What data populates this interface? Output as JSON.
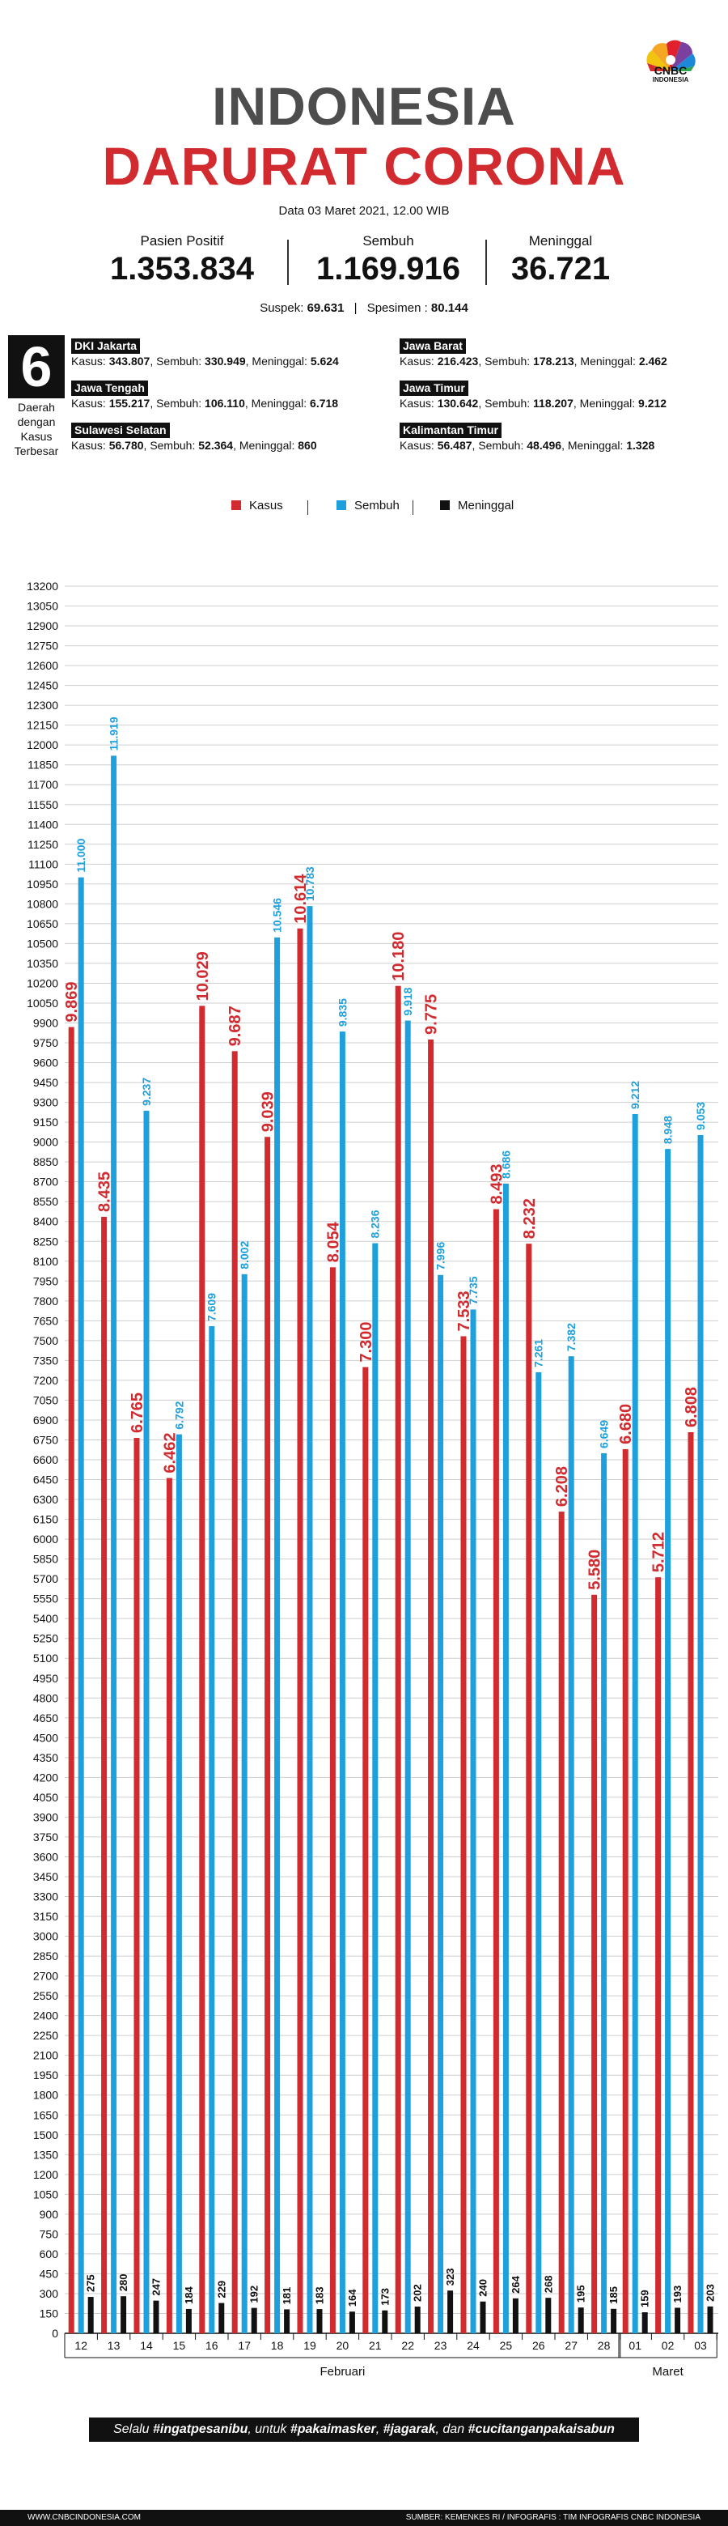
{
  "header": {
    "logo_text": "CNBC",
    "logo_sub": "INDONESIA",
    "title_line1": "INDONESIA",
    "title_line2": "DARURAT CORONA",
    "date": "Data 03 Maret 2021, 12.00 WIB"
  },
  "stats": {
    "positif_label": "Pasien Positif",
    "positif_value": "1.353.834",
    "sembuh_label": "Sembuh",
    "sembuh_value": "1.169.916",
    "meninggal_label": "Meninggal",
    "meninggal_value": "36.721"
  },
  "extra": {
    "suspek_label": "Suspek:",
    "suspek_value": "69.631",
    "spesimen_label": "Spesimen :",
    "spesimen_value": "80.144"
  },
  "regions_block": {
    "count": "6",
    "label_lines": [
      "Daerah",
      "dengan",
      "Kasus",
      "Terbesar"
    ]
  },
  "regions": [
    {
      "name": "DKI Jakarta",
      "kasus": "343.807",
      "sembuh": "330.949",
      "meninggal": "5.624"
    },
    {
      "name": "Jawa Barat",
      "kasus": "216.423",
      "sembuh": "178.213",
      "meninggal": "2.462"
    },
    {
      "name": "Jawa Tengah",
      "kasus": "155.217",
      "sembuh": "106.110",
      "meninggal": "6.718"
    },
    {
      "name": "Jawa Timur",
      "kasus": "130.642",
      "sembuh": "118.207",
      "meninggal": "9.212"
    },
    {
      "name": "Sulawesi Selatan",
      "kasus": "56.780",
      "sembuh": "52.364",
      "meninggal": "860"
    },
    {
      "name": "Kalimantan Timur",
      "kasus": "56.487",
      "sembuh": "48.496",
      "meninggal": "1.328"
    }
  ],
  "region_field_labels": {
    "kasus": "Kasus:",
    "sembuh": "Sembuh:",
    "meninggal": "Meninggal:"
  },
  "colors": {
    "kasus": "#d12a2f",
    "sembuh": "#1ea0dc",
    "meninggal": "#111111",
    "title_gray": "#4d4d4d"
  },
  "chart_data": {
    "type": "bar",
    "legend": [
      "Kasus",
      "Sembuh",
      "Meninggal"
    ],
    "legend_position": "top",
    "categories": [
      "12",
      "13",
      "14",
      "15",
      "16",
      "17",
      "18",
      "19",
      "20",
      "21",
      "22",
      "23",
      "24",
      "25",
      "26",
      "27",
      "28",
      "01",
      "02",
      "03"
    ],
    "groups": [
      {
        "label": "Februari",
        "categories": [
          "12",
          "13",
          "14",
          "15",
          "16",
          "17",
          "18",
          "19",
          "20",
          "21",
          "22",
          "23",
          "24",
          "25",
          "26",
          "27",
          "28"
        ]
      },
      {
        "label": "Maret",
        "categories": [
          "01",
          "02",
          "03"
        ]
      }
    ],
    "series": [
      {
        "name": "Kasus",
        "color": "#d12a2f",
        "values": [
          9869,
          8435,
          6765,
          6462,
          10029,
          9687,
          9039,
          10614,
          8054,
          7300,
          10180,
          9775,
          7533,
          8493,
          8232,
          6208,
          5580,
          6680,
          5712,
          6808
        ],
        "labels": [
          "9.869",
          "8.435",
          "6.765",
          "6.462",
          "10.029",
          "9.687",
          "9.039",
          "10.614",
          "8.054",
          "7.300",
          "10.180",
          "9.775",
          "7.533",
          "8.493",
          "8.232",
          "6.208",
          "5.580",
          "6.680",
          "5.712",
          "6.808"
        ]
      },
      {
        "name": "Sembuh",
        "color": "#1ea0dc",
        "values": [
          11000,
          11919,
          9237,
          6792,
          7609,
          8002,
          10546,
          10783,
          9835,
          8236,
          9918,
          7996,
          7735,
          8686,
          7261,
          7382,
          6649,
          9212,
          8948,
          9053
        ],
        "labels": [
          "11.000",
          "11.919",
          "9.237",
          "6.792",
          "7.609",
          "8.002",
          "10.546",
          "10.783",
          "9.835",
          "8.236",
          "9.918",
          "7.996",
          "7.735",
          "8.686",
          "7.261",
          "7.382",
          "6.649",
          "9.212",
          "8.948",
          "9.053"
        ]
      },
      {
        "name": "Meninggal",
        "color": "#111111",
        "values": [
          275,
          280,
          247,
          184,
          229,
          192,
          181,
          183,
          164,
          173,
          202,
          323,
          240,
          264,
          268,
          195,
          185,
          159,
          193,
          203
        ],
        "labels": [
          "275",
          "280",
          "247",
          "184",
          "229",
          "192",
          "181",
          "183",
          "164",
          "173",
          "202",
          "323",
          "240",
          "264",
          "268",
          "195",
          "185",
          "159",
          "193",
          "203"
        ]
      }
    ],
    "y_ticks": [
      0,
      150,
      300,
      450,
      600,
      750,
      900,
      1050,
      1200,
      1350,
      1500,
      1650,
      1800,
      1950,
      2100,
      2250,
      2400,
      2550,
      2700,
      2850,
      3000,
      3150,
      3300,
      3450,
      3600,
      3750,
      3900,
      4050,
      4200,
      4350,
      4500,
      4650,
      4800,
      4950,
      5100,
      5250,
      5400,
      5550,
      5700,
      5850,
      6000,
      6150,
      6300,
      6450,
      6600,
      6750,
      6900,
      7050,
      7200,
      7350,
      7500,
      7650,
      7800,
      7950,
      8100,
      8250,
      8400,
      8550,
      8700,
      8850,
      9000,
      9150,
      9300,
      9450,
      9600,
      9750,
      9900,
      10050,
      10200,
      10350,
      10500,
      10650,
      10800,
      10950,
      11100,
      11250,
      11400,
      11550,
      11700,
      11850,
      12000,
      12150,
      12300,
      12450,
      12600,
      12750,
      12900,
      13050,
      13200
    ],
    "ylim": [
      0,
      13200
    ],
    "grid": true
  },
  "footer": {
    "note_prefix": "Selalu ",
    "note_tag1": "#ingatpesanibu",
    "note_mid1": ", untuk ",
    "note_tag2": "#pakaimasker",
    "note_mid2": ", ",
    "note_tag3": "#jagarak",
    "note_mid3": ", dan ",
    "note_tag4": "#cucitanganpakaisabun",
    "website": "WWW.CNBCINDONESIA.COM",
    "source": "SUMBER: KEMENKES RI / INFOGRAFIS : TIM INFOGRAFIS CNBC INDONESIA"
  }
}
